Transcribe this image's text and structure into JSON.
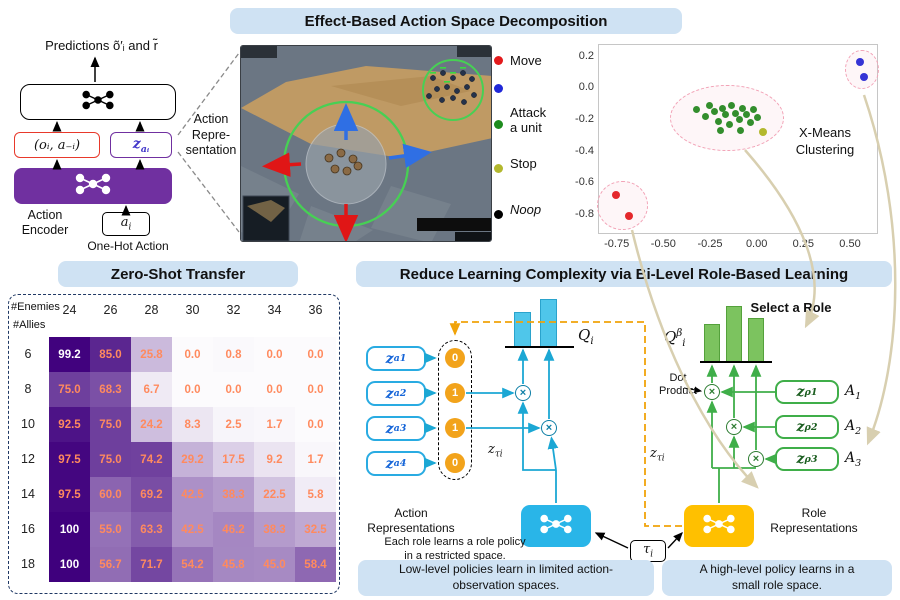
{
  "banners": {
    "top": "Effect-Based Action Space Decomposition",
    "zero_shot": "Zero-Shot Transfer",
    "bi_level": "Reduce Learning Complexity via Bi-Level Role-Based Learning"
  },
  "icons": {
    "prediction_model": "network-nodes",
    "action_encoder": "network-nodes",
    "low_level_policy": "network-nodes",
    "high_level_policy": "network-nodes"
  },
  "encoder": {
    "predictions": "Predictions õ′ᵢ and r̃",
    "obs_action": "(oᵢ, a₋ᵢ)",
    "z_a": {
      "base": "z",
      "sub": "aᵢ"
    },
    "action_representation": "Action\nRepre-\nsentation",
    "encoder_label": "Action\nEncoder",
    "a_i": {
      "base": "a",
      "sub": "i"
    },
    "one_hot": "One-Hot Action"
  },
  "scatter": {
    "annotation": "X-Means\nClustering",
    "x_ticks": [
      "-0.75",
      "-0.50",
      "-0.25",
      "0.00",
      "0.25",
      "0.50"
    ],
    "x_tick_values": [
      -0.75,
      -0.5,
      -0.25,
      0,
      0.25,
      0.5
    ],
    "y_ticks": [
      "0.2",
      "0.0",
      "-0.2",
      "-0.4",
      "-0.6",
      "-0.8"
    ],
    "y_tick_values": [
      0.2,
      0,
      -0.2,
      -0.4,
      -0.6,
      -0.8
    ],
    "legend": [
      {
        "label": "Move",
        "colors": [
          "#e31a1c",
          "#2028d8"
        ],
        "italic": false
      },
      {
        "label": "Attack\na unit",
        "colors": [
          "#1e8c1e"
        ],
        "italic": false
      },
      {
        "label": "Stop",
        "colors": [
          "#b3b82e"
        ],
        "italic": false
      },
      {
        "label": "Noop",
        "colors": [
          "#000000"
        ],
        "italic": true
      }
    ],
    "clusters": {
      "attack": {
        "color": "#1e8c1e",
        "circled": true,
        "points": [
          [
            -0.33,
            -0.13
          ],
          [
            -0.28,
            -0.17
          ],
          [
            -0.26,
            -0.1
          ],
          [
            -0.23,
            -0.14
          ],
          [
            -0.21,
            -0.2
          ],
          [
            -0.19,
            -0.12
          ],
          [
            -0.17,
            -0.16
          ],
          [
            -0.15,
            -0.22
          ],
          [
            -0.14,
            -0.1
          ],
          [
            -0.12,
            -0.15
          ],
          [
            -0.1,
            -0.19
          ],
          [
            -0.08,
            -0.12
          ],
          [
            -0.06,
            -0.16
          ],
          [
            -0.04,
            -0.21
          ],
          [
            -0.02,
            -0.13
          ],
          [
            0.0,
            -0.18
          ],
          [
            -0.2,
            -0.26
          ],
          [
            -0.09,
            -0.26
          ]
        ]
      },
      "move_red": {
        "color": "#e31a1c",
        "circled": true,
        "points": [
          [
            -0.76,
            -0.67
          ],
          [
            -0.69,
            -0.8
          ]
        ]
      },
      "move_blue": {
        "color": "#2028d8",
        "circled": true,
        "points": [
          [
            0.55,
            0.17
          ],
          [
            0.57,
            0.08
          ]
        ]
      },
      "stop": {
        "color": "#b3b82e",
        "circled": false,
        "points": [
          [
            0.03,
            -0.27
          ]
        ]
      }
    }
  },
  "heatmap": {
    "col_axis": "#Enemies",
    "row_axis": "#Allies",
    "cols": [
      "24",
      "26",
      "28",
      "30",
      "32",
      "34",
      "36"
    ],
    "rows": [
      "6",
      "8",
      "10",
      "12",
      "14",
      "16",
      "18"
    ],
    "values": [
      [
        "99.2",
        "85.0",
        "25.8",
        "0.0",
        "0.8",
        "0.0",
        "0.0"
      ],
      [
        "75.0",
        "68.3",
        "6.7",
        "0.0",
        "0.0",
        "0.0",
        "0.0"
      ],
      [
        "92.5",
        "75.0",
        "24.2",
        "8.3",
        "2.5",
        "1.7",
        "0.0"
      ],
      [
        "97.5",
        "75.0",
        "74.2",
        "29.2",
        "17.5",
        "9.2",
        "1.7"
      ],
      [
        "97.5",
        "60.0",
        "69.2",
        "42.5",
        "38.3",
        "22.5",
        "5.8"
      ],
      [
        "100",
        "55.0",
        "63.3",
        "42.5",
        "46.2",
        "38.3",
        "32.5"
      ],
      [
        "100",
        "56.7",
        "71.7",
        "54.2",
        "45.8",
        "45.0",
        "58.4"
      ]
    ]
  },
  "role_learning": {
    "action_boxes": [
      {
        "base": "z",
        "sub": "a1"
      },
      {
        "base": "z",
        "sub": "a2"
      },
      {
        "base": "z",
        "sub": "a3"
      },
      {
        "base": "z",
        "sub": "a4"
      }
    ],
    "mask_values": [
      "0",
      "1",
      "1",
      "0"
    ],
    "q_label": {
      "base": "Q",
      "sub": "i"
    },
    "q_beta_label": {
      "base": "Q",
      "sup": "β",
      "sub": "i"
    },
    "q_bars": {
      "values": [
        35,
        48
      ]
    },
    "q_beta_bars": {
      "values": [
        38,
        56,
        44
      ]
    },
    "select_role": "Select a Role",
    "dot_product": "Dot\nProduct",
    "z_tau_left": {
      "base": "z",
      "sub": "τi"
    },
    "z_tau_right": {
      "base": "z",
      "sub": "τi"
    },
    "tau": {
      "base": "τ",
      "sub": "i"
    },
    "role_boxes": [
      {
        "base": "z",
        "sub": "ρ1"
      },
      {
        "base": "z",
        "sub": "ρ2"
      },
      {
        "base": "z",
        "sub": "ρ3"
      }
    ],
    "role_outputs": [
      {
        "base": "A",
        "sub": "1"
      },
      {
        "base": "A",
        "sub": "2"
      },
      {
        "base": "A",
        "sub": "3"
      }
    ],
    "action_repr_caption": "Action\nRepresentations",
    "role_repr_caption": "Role\nRepresentations",
    "restricted_note": "Each role learns a role policy\nin a restricted space.",
    "low_level_note": "Low-level policies learn in limited action-\nobservation spaces.",
    "high_level_note": "A high-level policy learns in a\nsmall role space."
  }
}
